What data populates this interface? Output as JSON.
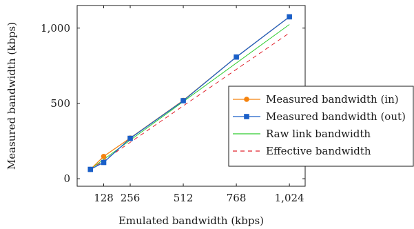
{
  "chart_data": {
    "type": "line",
    "title": "",
    "xlabel": "Emulated bandwidth (kbps)",
    "ylabel": "Measured bandwidth (kbps)",
    "xlim": [
      0,
      1100
    ],
    "ylim": [
      -50,
      1150
    ],
    "xticks": [
      128,
      256,
      512,
      768,
      1024
    ],
    "xtick_labels": [
      "128",
      "256",
      "512",
      "768",
      "1,024"
    ],
    "yticks": [
      0,
      500,
      1000
    ],
    "ytick_labels": [
      "0",
      "500",
      "1,000"
    ],
    "grid": false,
    "legend_position": "right",
    "series": [
      {
        "name": "Measured bandwidth (in)",
        "color": "#f5820d",
        "marker": "circle",
        "dash": "solid",
        "x": [
          64,
          128,
          256,
          512,
          768,
          1024
        ],
        "y": [
          62,
          148,
          270,
          520,
          808,
          1075
        ]
      },
      {
        "name": "Measured bandwidth (out)",
        "color": "#1a5fc8",
        "marker": "square",
        "dash": "solid",
        "x": [
          64,
          128,
          256,
          512,
          768,
          1024
        ],
        "y": [
          62,
          108,
          268,
          518,
          808,
          1075
        ]
      },
      {
        "name": "Raw link bandwidth",
        "color": "#2ecc2e",
        "marker": "none",
        "dash": "solid",
        "x": [
          64,
          1024
        ],
        "y": [
          64,
          1024
        ]
      },
      {
        "name": "Effective bandwidth",
        "color": "#e0202a",
        "marker": "none",
        "dash": "dashed",
        "x": [
          64,
          1024
        ],
        "y": [
          60,
          968
        ]
      }
    ]
  }
}
